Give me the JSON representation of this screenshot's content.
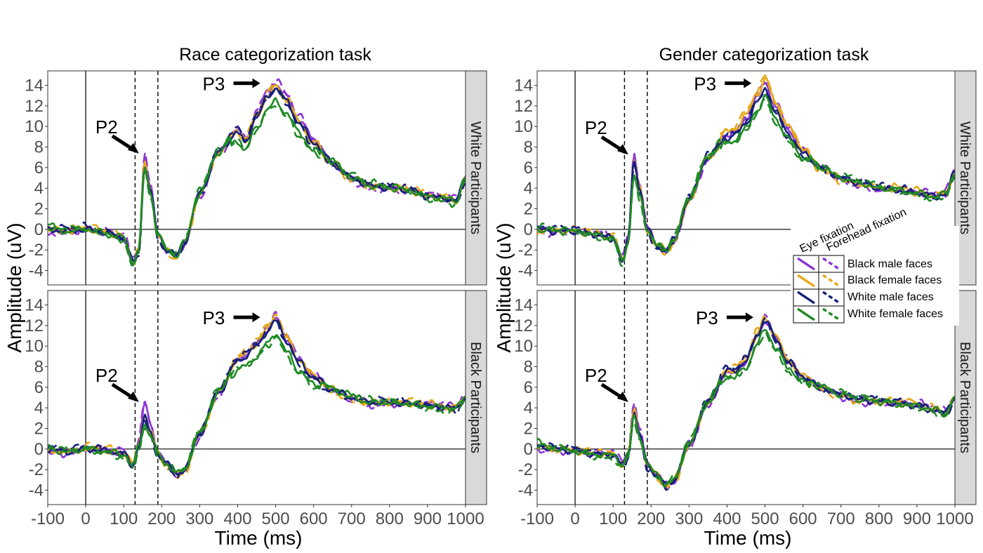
{
  "figure": {
    "ylabel": "Amplitude (uV)",
    "xlabel": "Time (ms)",
    "xticks": [
      -100,
      0,
      100,
      200,
      300,
      400,
      500,
      600,
      700,
      800,
      900,
      1000
    ],
    "yticks": [
      -4,
      -2,
      0,
      2,
      4,
      6,
      8,
      10,
      12,
      14
    ],
    "xlim": [
      -100,
      1000
    ],
    "ylim": [
      -5.4,
      15.4
    ],
    "vlines_dashed": [
      130,
      190
    ],
    "vline_solid": 0,
    "hline": 0,
    "panel_titles": [
      "Race categorization task",
      "Gender categorization task"
    ],
    "strip_labels": [
      "White Participants",
      "Black Participants"
    ],
    "grid": false
  },
  "legend": {
    "col_headers": [
      "Eye fixation",
      "Forehead fixation"
    ],
    "entries": [
      {
        "label": "Black male faces",
        "color": "#8b35d6"
      },
      {
        "label": "Black female faces",
        "color": "#e6a817"
      },
      {
        "label": "White male faces",
        "color": "#17207a"
      },
      {
        "label": "White female faces",
        "color": "#1f8a25"
      }
    ],
    "placement": "right, spanning rows"
  },
  "annotations": {
    "p2": "P2",
    "p3": "P3"
  },
  "chart_data": {
    "type": "line",
    "x_unit": "ms",
    "y_unit": "uV",
    "panels": [
      {
        "task": "Race categorization task",
        "participants": "White Participants",
        "p2_peak": [
          155,
          7.3
        ],
        "p3_peak": [
          500,
          14.2
        ],
        "series_meta": [
          {
            "face": "Black male faces",
            "fixation": "Eye fixation",
            "p2": 7.6,
            "p3": 14.6
          },
          {
            "face": "Black female faces",
            "fixation": "Eye fixation",
            "p2": 7.0,
            "p3": 14.2
          },
          {
            "face": "White male faces",
            "fixation": "Eye fixation",
            "p2": 6.8,
            "p3": 14.1
          },
          {
            "face": "White female faces",
            "fixation": "Eye fixation",
            "p2": 6.5,
            "p3": 12.8
          }
        ]
      },
      {
        "task": "Race categorization task",
        "participants": "Black Participants",
        "p2_peak": [
          155,
          4.5
        ],
        "p3_peak": [
          500,
          12.8
        ],
        "series_meta": [
          {
            "face": "Black male faces",
            "fixation": "Eye fixation",
            "p2": 5.5,
            "p3": 13.0
          },
          {
            "face": "Black female faces",
            "fixation": "Eye fixation",
            "p2": 4.2,
            "p3": 13.1
          },
          {
            "face": "White male faces",
            "fixation": "Eye fixation",
            "p2": 3.8,
            "p3": 12.8
          },
          {
            "face": "White female faces",
            "fixation": "Eye fixation",
            "p2": 3.0,
            "p3": 11.5
          }
        ]
      },
      {
        "task": "Gender categorization task",
        "participants": "White Participants",
        "p2_peak": [
          155,
          7.2
        ],
        "p3_peak": [
          505,
          14.2
        ],
        "series_meta": [
          {
            "face": "Black male faces",
            "fixation": "Eye fixation",
            "p2": 7.6,
            "p3": 14.6
          },
          {
            "face": "Black female faces",
            "fixation": "Eye fixation",
            "p2": 7.0,
            "p3": 15.0
          },
          {
            "face": "White male faces",
            "fixation": "Eye fixation",
            "p2": 7.2,
            "p3": 14.0
          },
          {
            "face": "White female faces",
            "fixation": "Eye fixation",
            "p2": 5.6,
            "p3": 13.2
          }
        ]
      },
      {
        "task": "Gender categorization task",
        "participants": "Black Participants",
        "p2_peak": [
          155,
          4.5
        ],
        "p3_peak": [
          510,
          12.8
        ],
        "series_meta": [
          {
            "face": "Black male faces",
            "fixation": "Eye fixation",
            "p2": 4.8,
            "p3": 12.8
          },
          {
            "face": "Black female faces",
            "fixation": "Eye fixation",
            "p2": 4.2,
            "p3": 13.0
          },
          {
            "face": "White male faces",
            "fixation": "Eye fixation",
            "p2": 4.0,
            "p3": 12.9
          },
          {
            "face": "White female faces",
            "fixation": "Eye fixation",
            "p2": 3.6,
            "p3": 11.9
          }
        ]
      }
    ],
    "shape_keypoints": {
      "x": [
        -100,
        -50,
        0,
        50,
        100,
        125,
        140,
        155,
        170,
        190,
        215,
        240,
        260,
        300,
        350,
        400,
        420,
        450,
        480,
        500,
        530,
        560,
        600,
        650,
        700,
        750,
        800,
        850,
        900,
        950,
        975,
        1000
      ],
      "race_white": [
        0,
        -0.2,
        0,
        -0.3,
        -0.8,
        -3.2,
        -2.0,
        6.8,
        4.0,
        -0.5,
        -2.0,
        -2.5,
        -1.2,
        3.5,
        7.5,
        9.5,
        8.5,
        11.0,
        13.0,
        13.8,
        12.5,
        10.5,
        8.5,
        6.5,
        5.0,
        4.2,
        4.0,
        3.8,
        3.2,
        3.0,
        2.8,
        5.0
      ],
      "race_black": [
        0,
        -0.3,
        0,
        -0.2,
        -0.5,
        -1.6,
        0.5,
        3.6,
        2.0,
        -0.5,
        -1.5,
        -2.4,
        -2.0,
        1.5,
        5.5,
        8.5,
        9.0,
        10.0,
        11.5,
        12.5,
        10.5,
        8.5,
        7.0,
        5.8,
        5.0,
        4.5,
        4.5,
        4.4,
        4.2,
        4.0,
        4.0,
        5.0
      ],
      "gender_white": [
        0,
        -0.2,
        -0.2,
        -0.5,
        -0.8,
        -3.0,
        -1.0,
        6.8,
        4.0,
        0.0,
        -1.5,
        -2.0,
        -1.0,
        3.0,
        7.0,
        9.0,
        9.2,
        10.5,
        12.5,
        13.8,
        11.5,
        9.5,
        7.5,
        6.0,
        5.0,
        4.5,
        4.0,
        3.8,
        3.5,
        3.2,
        3.5,
        5.5
      ],
      "gender_black": [
        0.3,
        0,
        -0.2,
        -0.5,
        -0.6,
        -1.5,
        -0.5,
        4.0,
        1.5,
        -1.5,
        -2.5,
        -3.5,
        -3.0,
        0.5,
        4.5,
        7.5,
        7.5,
        8.5,
        11.0,
        12.5,
        10.5,
        8.5,
        7.0,
        6.0,
        5.3,
        4.8,
        4.6,
        4.4,
        4.2,
        3.8,
        3.5,
        5.0
      ]
    }
  }
}
